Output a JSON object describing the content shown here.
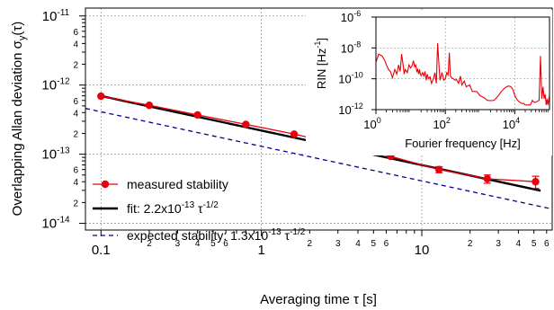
{
  "chart_data": [
    {
      "type": "line",
      "xlabel": "Averaging time τ [s]",
      "ylabel": "Overlapping Allan deviation σ_y(τ)",
      "xscale": "log",
      "yscale": "log",
      "xlim": [
        0.08,
        65
      ],
      "ylim": [
        8e-15,
        1.3e-11
      ],
      "grid": true,
      "legend_position": "bottom-left",
      "x_major_ticks": [
        {
          "v": 0.1,
          "label": "0.1"
        },
        {
          "v": 1,
          "label": "1"
        },
        {
          "v": 10,
          "label": "10"
        }
      ],
      "x_minor_ticks": [
        {
          "v": 0.2,
          "label": "2"
        },
        {
          "v": 0.3,
          "label": "3"
        },
        {
          "v": 0.4,
          "label": "4"
        },
        {
          "v": 0.5,
          "label": "5"
        },
        {
          "v": 0.6,
          "label": "6"
        },
        {
          "v": 0.7,
          "label": ""
        },
        {
          "v": 0.8,
          "label": ""
        },
        {
          "v": 0.9,
          "label": ""
        },
        {
          "v": 2,
          "label": "2"
        },
        {
          "v": 3,
          "label": "3"
        },
        {
          "v": 4,
          "label": "4"
        },
        {
          "v": 5,
          "label": "5"
        },
        {
          "v": 6,
          "label": "6"
        },
        {
          "v": 7,
          "label": ""
        },
        {
          "v": 8,
          "label": ""
        },
        {
          "v": 9,
          "label": ""
        },
        {
          "v": 20,
          "label": "2"
        },
        {
          "v": 30,
          "label": "3"
        },
        {
          "v": 40,
          "label": "4"
        },
        {
          "v": 50,
          "label": "5"
        },
        {
          "v": 60,
          "label": "6"
        }
      ],
      "y_major_ticks": [
        {
          "v": 1e-14,
          "base": "10",
          "exp": "-14"
        },
        {
          "v": 1e-13,
          "base": "10",
          "exp": "-13"
        },
        {
          "v": 1e-12,
          "base": "10",
          "exp": "-12"
        },
        {
          "v": 1e-11,
          "base": "10",
          "exp": "-11"
        }
      ],
      "y_minor_ticks": [
        {
          "v": 2e-14,
          "label": "2"
        },
        {
          "v": 3e-14,
          "label": ""
        },
        {
          "v": 4e-14,
          "label": "4"
        },
        {
          "v": 5e-14,
          "label": ""
        },
        {
          "v": 6e-14,
          "label": "6"
        },
        {
          "v": 7e-14,
          "label": ""
        },
        {
          "v": 8e-14,
          "label": ""
        },
        {
          "v": 9e-14,
          "label": ""
        },
        {
          "v": 2e-13,
          "label": "2"
        },
        {
          "v": 3e-13,
          "label": ""
        },
        {
          "v": 4e-13,
          "label": "4"
        },
        {
          "v": 5e-13,
          "label": ""
        },
        {
          "v": 6e-13,
          "label": "6"
        },
        {
          "v": 7e-13,
          "label": ""
        },
        {
          "v": 8e-13,
          "label": ""
        },
        {
          "v": 9e-13,
          "label": ""
        },
        {
          "v": 2e-12,
          "label": "2"
        },
        {
          "v": 3e-12,
          "label": ""
        },
        {
          "v": 4e-12,
          "label": "4"
        },
        {
          "v": 5e-12,
          "label": ""
        },
        {
          "v": 6e-12,
          "label": "6"
        },
        {
          "v": 7e-12,
          "label": ""
        },
        {
          "v": 8e-12,
          "label": ""
        },
        {
          "v": 9e-12,
          "label": ""
        }
      ],
      "series": [
        {
          "name": "measured stability",
          "color": "#e8000b",
          "style": "line+markers",
          "x": [
            0.1,
            0.2,
            0.4,
            0.8,
            1.6,
            3.2,
            6.4,
            12.8,
            25.6,
            51.2
          ],
          "y": [
            6.9e-13,
            5.1e-13,
            3.7e-13,
            2.7e-13,
            1.95e-13,
            1.35e-13,
            9.3e-14,
            6e-14,
            4.4e-14,
            4e-14
          ],
          "err_low": [
            5e-15,
            4e-15,
            3e-15,
            3e-15,
            3e-15,
            5e-15,
            5e-15,
            6e-15,
            6e-15,
            8e-15
          ],
          "err_high": [
            5e-15,
            4e-15,
            3e-15,
            3e-15,
            3e-15,
            5e-15,
            5e-15,
            6e-15,
            6e-15,
            8e-15
          ]
        },
        {
          "name": "fit: 2.2x10-13 τ-1/2",
          "label_main": "fit: 2.2x10",
          "label_exp": "-13",
          "label_tau": " τ",
          "label_tau_exp": "-1/2",
          "color": "#000000",
          "style": "solid",
          "x": [
            0.1,
            55
          ],
          "y": [
            6.96e-13,
            2.97e-14
          ]
        },
        {
          "name": "expected stability: 1.3x10-13 τ-1/2",
          "label_main": "expected stability: 1.3x10",
          "label_exp": "-13",
          "label_tau": " τ",
          "label_tau_exp": "-1/2",
          "color": "#00008b",
          "style": "dashed",
          "x": [
            0.08,
            65
          ],
          "y": [
            4.6e-13,
            1.61e-14
          ]
        }
      ]
    },
    {
      "type": "line",
      "inset": true,
      "xlabel": "Fourier frequency [Hz]",
      "ylabel": "RIN [Hz-1]",
      "ylabel_main": "RIN [Hz",
      "ylabel_exp": "-1",
      "ylabel_close": "]",
      "xscale": "log",
      "yscale": "log",
      "xlim": [
        1,
        100000
      ],
      "ylim": [
        1e-12,
        1e-06
      ],
      "grid": true,
      "x_ticks": [
        {
          "v": 1,
          "exp": "0"
        },
        {
          "v": 100,
          "exp": "2"
        },
        {
          "v": 10000,
          "exp": "4"
        }
      ],
      "y_ticks": [
        {
          "v": 1e-12,
          "exp": "-12"
        },
        {
          "v": 1e-10,
          "exp": "-10"
        },
        {
          "v": 1e-08,
          "exp": "-8"
        },
        {
          "v": 1e-06,
          "exp": "-6"
        }
      ],
      "series": [
        {
          "color": "#e8000b",
          "x": [
            1,
            1.2,
            1.5,
            1.8,
            2,
            2.3,
            2.6,
            3,
            3.5,
            4,
            4.5,
            5,
            5.5,
            6,
            6.5,
            7,
            8,
            9,
            10,
            11,
            12,
            13,
            14,
            15,
            16,
            17,
            18,
            19,
            20,
            22,
            24,
            26,
            28,
            30,
            33,
            36,
            40,
            45,
            50,
            55,
            60,
            70,
            80,
            90,
            100,
            110,
            120,
            130,
            140,
            150,
            170,
            190,
            210,
            240,
            270,
            300,
            350,
            400,
            500,
            600,
            800,
            1000,
            1300,
            1600,
            2000,
            2500,
            3000,
            3500,
            4000,
            5000,
            6000,
            7000,
            8000,
            9000,
            10000,
            12000,
            14000,
            16000,
            18000,
            20000,
            24000,
            28000,
            32000,
            36000,
            40000,
            45000,
            50000,
            55000,
            60000,
            65000,
            70000,
            75000,
            80000,
            85000,
            90000,
            100000
          ],
          "y": [
            1.2e-09,
            4e-09,
            3e-09,
            1.5e-09,
            8e-10,
            4e-10,
            3e-10,
            1.2e-10,
            4e-10,
            2e-10,
            8e-10,
            3e-10,
            4e-09,
            1e-09,
            2e-10,
            4e-10,
            2.5e-10,
            8e-10,
            5e-10,
            7e-10,
            1.5e-09,
            6e-10,
            8e-10,
            3e-10,
            4e-10,
            2e-10,
            4e-10,
            2e-10,
            1.6e-10,
            2.5e-10,
            1.5e-10,
            3e-10,
            8e-11,
            2e-10,
            1e-10,
            1.3e-10,
            5e-11,
            1e-10,
            2.5e-10,
            5e-11,
            2e-08,
            8e-11,
            2.5e-10,
            8e-11,
            1e-10,
            2.5e-10,
            1.8e-10,
            5e-09,
            1.5e-10,
            1.2e-10,
            1e-10,
            8e-11,
            9e-11,
            5e-11,
            1.5e-10,
            4e-11,
            7e-11,
            3e-11,
            4e-11,
            1.5e-11,
            1.5e-11,
            8e-12,
            6e-12,
            4e-12,
            3.8e-12,
            4e-12,
            6e-12,
            9e-12,
            1.4e-11,
            2.4e-11,
            3.2e-11,
            3.4e-11,
            2.8e-11,
            1.8e-11,
            8e-12,
            4e-12,
            3e-12,
            2.5e-12,
            2.5e-12,
            2e-12,
            2e-12,
            2e-12,
            4e-12,
            3e-12,
            3e-12,
            3.5e-12,
            4e-12,
            3e-09,
            5e-12,
            3e-11,
            5e-12,
            1e-11,
            2e-12,
            5e-12,
            2e-12,
            8e-12
          ]
        }
      ]
    }
  ]
}
